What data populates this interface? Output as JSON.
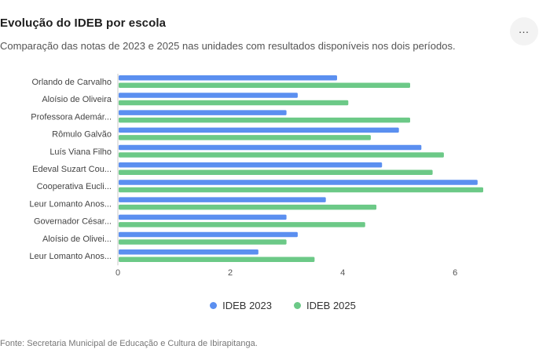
{
  "header": {
    "title": "Evolução do IDEB por escola",
    "subtitle": "Comparação das notas de 2023 e 2025 nas unidades com resultados disponíveis nos dois períodos.",
    "menu_icon": "more-horizontal-icon"
  },
  "footer": {
    "source": "Fonte: Secretaria Municipal de Educação e Cultura de Ibirapitanga."
  },
  "chart_data": {
    "type": "bar",
    "orientation": "horizontal",
    "categories": [
      "Orlando de Carvalho",
      "Aloísio de Oliveira",
      "Professora Ademár...",
      "Rômulo Galvão",
      "Luís Viana Filho",
      "Edeval Suzart Cou...",
      "Cooperativa Eucli...",
      "Leur Lomanto Anos...",
      "Governador César...",
      "Aloísio de Olivei...",
      "Leur Lomanto Anos..."
    ],
    "series": [
      {
        "name": "IDEB 2023",
        "color": "#5b8ff0",
        "values": [
          3.9,
          3.2,
          3.0,
          5.0,
          5.4,
          4.7,
          6.4,
          3.7,
          3.0,
          3.2,
          2.5
        ]
      },
      {
        "name": "IDEB 2025",
        "color": "#6cc987",
        "values": [
          5.2,
          4.1,
          5.2,
          4.5,
          5.8,
          5.6,
          6.5,
          4.6,
          4.4,
          3.0,
          3.5
        ]
      }
    ],
    "xlim": [
      0,
      7.8
    ],
    "x_ticks": [
      0,
      2,
      4,
      6
    ],
    "grid": false,
    "legend_position": "bottom"
  }
}
